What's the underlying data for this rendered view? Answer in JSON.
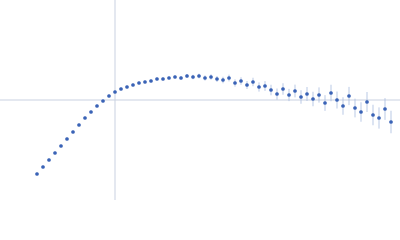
{
  "chart_data": {
    "type": "scatter",
    "xlim": [
      -1.15,
      2.85
    ],
    "ylim": [
      -1.0,
      1.0
    ],
    "xticks": [
      0
    ],
    "yticks": [
      0
    ],
    "grid": true,
    "grid_color": "#c8d2e0",
    "color": "#3a63b6",
    "error_color": "#a9bbe0",
    "x": [
      -0.78,
      -0.72,
      -0.66,
      -0.6,
      -0.54,
      -0.48,
      -0.42,
      -0.36,
      -0.3,
      -0.24,
      -0.18,
      -0.12,
      -0.06,
      0,
      0.06,
      0.12,
      0.18,
      0.24,
      0.3,
      0.36,
      0.42,
      0.48,
      0.54,
      0.6,
      0.66,
      0.72,
      0.78,
      0.84,
      0.9,
      0.96,
      1.02,
      1.08,
      1.14,
      1.2,
      1.26,
      1.32,
      1.38,
      1.44,
      1.5,
      1.56,
      1.62,
      1.68,
      1.74,
      1.8,
      1.86,
      1.92,
      1.98,
      2.04,
      2.1,
      2.16,
      2.22,
      2.28,
      2.34,
      2.4,
      2.46,
      2.52,
      2.58,
      2.64,
      2.7,
      2.76
    ],
    "values": [
      -0.74,
      -0.67,
      -0.6,
      -0.53,
      -0.46,
      -0.39,
      -0.32,
      -0.25,
      -0.18,
      -0.12,
      -0.06,
      -0.01,
      0.04,
      0.08,
      0.11,
      0.13,
      0.15,
      0.17,
      0.18,
      0.19,
      0.21,
      0.21,
      0.22,
      0.23,
      0.22,
      0.24,
      0.23,
      0.24,
      0.22,
      0.23,
      0.21,
      0.2,
      0.22,
      0.17,
      0.19,
      0.15,
      0.18,
      0.13,
      0.14,
      0.1,
      0.06,
      0.11,
      0.05,
      0.09,
      0.03,
      0.06,
      0.01,
      0.05,
      -0.03,
      0.07,
      0,
      -0.06,
      0.04,
      -0.08,
      -0.12,
      -0.02,
      -0.15,
      -0.18,
      -0.09,
      -0.22
    ],
    "errors": [
      0.005,
      0.005,
      0.005,
      0.005,
      0.005,
      0.005,
      0.005,
      0.005,
      0.005,
      0.005,
      0.005,
      0.005,
      0.006,
      0.006,
      0.007,
      0.008,
      0.009,
      0.01,
      0.011,
      0.012,
      0.013,
      0.014,
      0.015,
      0.016,
      0.018,
      0.02,
      0.022,
      0.024,
      0.026,
      0.028,
      0.03,
      0.032,
      0.034,
      0.036,
      0.038,
      0.04,
      0.043,
      0.046,
      0.049,
      0.052,
      0.055,
      0.058,
      0.061,
      0.064,
      0.067,
      0.07,
      0.073,
      0.076,
      0.079,
      0.082,
      0.085,
      0.088,
      0.091,
      0.094,
      0.097,
      0.1,
      0.103,
      0.106,
      0.109,
      0.112
    ]
  }
}
